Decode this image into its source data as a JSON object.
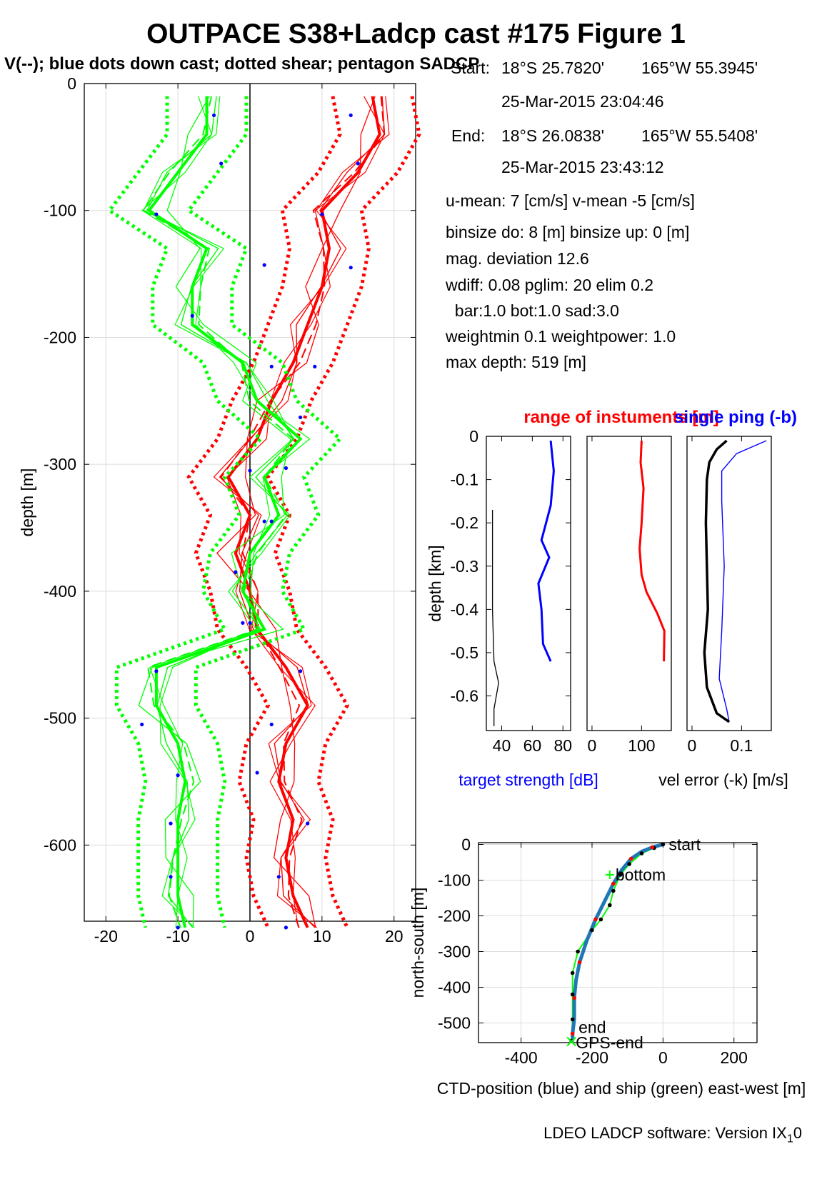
{
  "title": "OUTPACE S38+Ladcp cast #175  Figure 1",
  "subtitle": "V(--); blue dots down cast; dotted shear; pentagon SADCP",
  "meta": {
    "start_label": "Start:",
    "start_lat": "18°S 25.7820'",
    "start_lon": "165°W 55.3945'",
    "start_time": "25-Mar-2015 23:04:46",
    "end_label": "End:",
    "end_lat": "18°S 26.0838'",
    "end_lon": "165°W 55.5408'",
    "end_time": "25-Mar-2015 23:43:12",
    "means": "u-mean:   7 [cm/s]    v-mean  -5 [cm/s]",
    "binsize": "binsize do: 8 [m]  binsize up:  0 [m]",
    "magdev": "mag. deviation 12.6",
    "wdiff": "wdiff: 0.08  pglim: 20  elim 0.2",
    "bar": "  bar:1.0 bot:1.0 sad:3.0",
    "weight": "weightmin 0.1  weightpower: 1.0",
    "maxdepth": "max depth: 519 [m]"
  },
  "footer": {
    "text": "LDEO LADCP software: Version IX",
    "sub": "1",
    "tail": "0"
  },
  "colors": {
    "u": "#ff0000",
    "v": "#00ff00",
    "blue": "#0000ff",
    "ctd": "#1f77b4",
    "grid": "#dcdcdc"
  },
  "chart_data": [
    {
      "type": "line",
      "name": "velocity-profile",
      "ylabel": "depth [m]",
      "xlim": [
        -23,
        23
      ],
      "ylim": [
        -660,
        0
      ],
      "xticks": [
        -20,
        -10,
        0,
        10,
        20
      ],
      "yticks": [
        0,
        -100,
        -200,
        -300,
        -400,
        -500,
        -600
      ],
      "ytick_labels": [
        "0",
        "-100",
        "-200",
        "-300",
        "-400",
        "-500",
        "-600"
      ],
      "grid": true,
      "depth": [
        -10,
        -40,
        -70,
        -100,
        -130,
        -160,
        -190,
        -220,
        -250,
        -280,
        -310,
        -340,
        -370,
        -400,
        -430,
        -460,
        -490,
        -520,
        -550,
        -580,
        -610,
        -640,
        -665
      ],
      "series": [
        {
          "color": "u",
          "values": [
            17,
            18,
            15,
            10,
            11,
            10,
            8,
            6,
            3,
            1,
            -3,
            0,
            -2,
            0,
            1,
            5,
            8,
            5,
            4,
            6,
            5,
            6,
            8
          ]
        },
        {
          "color": "v",
          "values": [
            -6,
            -6,
            -10,
            -14,
            -6,
            -8,
            -8,
            -1,
            1,
            7,
            2,
            4,
            0,
            -1,
            2,
            -13,
            -13,
            -10,
            -9,
            -10,
            -10,
            -10,
            -9
          ]
        }
      ],
      "down_cast_u": [
        [
          14,
          -25
        ],
        [
          15,
          -63
        ],
        [
          10,
          -103
        ],
        [
          14,
          -145
        ],
        [
          9,
          -223
        ],
        [
          7,
          -263
        ],
        [
          0,
          -305
        ],
        [
          2,
          -345
        ],
        [
          -2,
          -385
        ],
        [
          0,
          -425
        ],
        [
          7,
          -463
        ],
        [
          3,
          -505
        ],
        [
          1,
          -543
        ],
        [
          8,
          -583
        ],
        [
          4,
          -625
        ],
        [
          5,
          -665
        ]
      ],
      "down_cast_v": [
        [
          -5,
          -25
        ],
        [
          -4,
          -63
        ],
        [
          -13,
          -103
        ],
        [
          2,
          -143
        ],
        [
          -8,
          -183
        ],
        [
          3,
          -223
        ],
        [
          5,
          -303
        ],
        [
          3,
          -345
        ],
        [
          -2,
          -385
        ],
        [
          -1,
          -425
        ],
        [
          -13,
          -463
        ],
        [
          -15,
          -505
        ],
        [
          -10,
          -545
        ],
        [
          -11,
          -583
        ],
        [
          -11,
          -625
        ],
        [
          -10,
          -665
        ]
      ]
    },
    {
      "type": "line",
      "name": "target-strength",
      "xlabel": "target strength [dB]",
      "ylabel": "depth [km]",
      "xlim": [
        30,
        85
      ],
      "ylim": [
        -0.68,
        0
      ],
      "xticks": [
        40,
        60,
        80
      ],
      "yticks": [
        0,
        -0.1,
        -0.2,
        -0.3,
        -0.4,
        -0.5,
        -0.6
      ],
      "ytick_labels": [
        "0",
        "-0.1",
        "-0.2",
        "-0.3",
        "-0.4",
        "-0.5",
        "-0.6"
      ],
      "series": [
        {
          "color": "blue",
          "points": [
            [
              72,
              -0.01
            ],
            [
              74,
              -0.08
            ],
            [
              72,
              -0.16
            ],
            [
              66,
              -0.24
            ],
            [
              71,
              -0.28
            ],
            [
              64,
              -0.34
            ],
            [
              66,
              -0.4
            ],
            [
              67,
              -0.48
            ],
            [
              72,
              -0.52
            ]
          ]
        },
        {
          "color": "black",
          "points": [
            [
              34,
              -0.17
            ],
            [
              34,
              -0.4
            ],
            [
              35,
              -0.52
            ],
            [
              38,
              -0.57
            ],
            [
              35,
              -0.63
            ],
            [
              35,
              -0.67
            ]
          ]
        }
      ]
    },
    {
      "type": "line",
      "name": "instrument-range",
      "title": "range of instuments [m]",
      "xlim": [
        -10,
        160
      ],
      "ylim": [
        -0.68,
        0
      ],
      "xticks": [
        0,
        100
      ],
      "series": [
        {
          "color": "u",
          "points": [
            [
              100,
              -0.01
            ],
            [
              98,
              -0.06
            ],
            [
              104,
              -0.12
            ],
            [
              100,
              -0.2
            ],
            [
              96,
              -0.26
            ],
            [
              100,
              -0.32
            ],
            [
              110,
              -0.36
            ],
            [
              132,
              -0.41
            ],
            [
              146,
              -0.45
            ],
            [
              145,
              -0.52
            ]
          ]
        }
      ]
    },
    {
      "type": "line",
      "name": "single-ping-error",
      "title": "single ping (-b)",
      "xlabel": "vel error (-k) [m/s]",
      "xlim": [
        -0.01,
        0.16
      ],
      "ylim": [
        -0.68,
        0
      ],
      "xticks": [
        0,
        0.1
      ],
      "series": [
        {
          "color": "blue",
          "points": [
            [
              0.15,
              -0.01
            ],
            [
              0.09,
              -0.04
            ],
            [
              0.06,
              -0.08
            ],
            [
              0.06,
              -0.15
            ],
            [
              0.065,
              -0.3
            ],
            [
              0.06,
              -0.45
            ],
            [
              0.055,
              -0.56
            ],
            [
              0.07,
              -0.63
            ],
            [
              0.075,
              -0.66
            ]
          ]
        },
        {
          "color": "black",
          "points": [
            [
              0.07,
              -0.01
            ],
            [
              0.05,
              -0.03
            ],
            [
              0.035,
              -0.06
            ],
            [
              0.03,
              -0.1
            ],
            [
              0.028,
              -0.2
            ],
            [
              0.03,
              -0.3
            ],
            [
              0.032,
              -0.4
            ],
            [
              0.025,
              -0.5
            ],
            [
              0.03,
              -0.58
            ],
            [
              0.05,
              -0.64
            ],
            [
              0.075,
              -0.66
            ]
          ]
        }
      ]
    },
    {
      "type": "line",
      "name": "ship-track",
      "xlabel": "CTD-position (blue) and ship (green) east-west [m]",
      "ylabel": "north-south [m]",
      "xlim": [
        -520,
        265
      ],
      "ylim": [
        -555,
        5
      ],
      "xticks": [
        -400,
        -200,
        0,
        200
      ],
      "yticks": [
        0,
        -100,
        -200,
        -300,
        -400,
        -500
      ],
      "xtick_labels": [
        "-400",
        "-200",
        "0",
        "200"
      ],
      "ytick_labels": [
        "0",
        "-100",
        "-200",
        "-300",
        "-400",
        "-500"
      ],
      "ctd": [
        [
          0,
          0
        ],
        [
          -30,
          -8
        ],
        [
          -60,
          -20
        ],
        [
          -90,
          -40
        ],
        [
          -115,
          -70
        ],
        [
          -140,
          -110
        ],
        [
          -165,
          -160
        ],
        [
          -190,
          -210
        ],
        [
          -215,
          -270
        ],
        [
          -235,
          -330
        ],
        [
          -245,
          -380
        ],
        [
          -250,
          -430
        ],
        [
          -250,
          -490
        ],
        [
          -255,
          -530
        ],
        [
          -255,
          -550
        ]
      ],
      "ship": [
        [
          0,
          0
        ],
        [
          -25,
          -10
        ],
        [
          -60,
          -25
        ],
        [
          -95,
          -55
        ],
        [
          -120,
          -85
        ],
        [
          -140,
          -130
        ],
        [
          -150,
          -170
        ],
        [
          -175,
          -210
        ],
        [
          -200,
          -240
        ],
        [
          -240,
          -300
        ],
        [
          -255,
          -360
        ],
        [
          -255,
          -420
        ],
        [
          -255,
          -490
        ],
        [
          -258,
          -550
        ]
      ],
      "labels": {
        "start": "start",
        "bottom": "bottom",
        "end": "end",
        "gps_end": "GPS-end"
      }
    }
  ]
}
